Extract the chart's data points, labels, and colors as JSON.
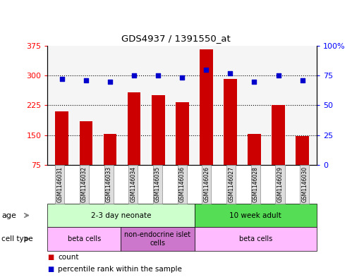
{
  "title": "GDS4937 / 1391550_at",
  "samples": [
    "GSM1146031",
    "GSM1146032",
    "GSM1146033",
    "GSM1146034",
    "GSM1146035",
    "GSM1146036",
    "GSM1146026",
    "GSM1146027",
    "GSM1146028",
    "GSM1146029",
    "GSM1146030"
  ],
  "counts": [
    210,
    185,
    153,
    258,
    250,
    232,
    365,
    292,
    152,
    225,
    148
  ],
  "percentiles": [
    72,
    71,
    70,
    75,
    75,
    73,
    80,
    77,
    70,
    75,
    71
  ],
  "ylim_left": [
    75,
    375
  ],
  "ylim_right": [
    0,
    100
  ],
  "yticks_left": [
    75,
    150,
    225,
    300,
    375
  ],
  "yticks_right": [
    0,
    25,
    50,
    75,
    100
  ],
  "ytick_right_labels": [
    "0",
    "25",
    "50",
    "75",
    "100%"
  ],
  "bar_color": "#CC0000",
  "scatter_color": "#0000CC",
  "bg_color": "#f5f5f5",
  "age_groups": [
    {
      "label": "2-3 day neonate",
      "start": 0,
      "end": 6,
      "color": "#ccffcc"
    },
    {
      "label": "10 week adult",
      "start": 6,
      "end": 11,
      "color": "#55dd55"
    }
  ],
  "cell_types": [
    {
      "label": "beta cells",
      "start": 0,
      "end": 3,
      "color": "#ffbbff"
    },
    {
      "label": "non-endocrine islet\ncells",
      "start": 3,
      "end": 6,
      "color": "#cc77cc"
    },
    {
      "label": "beta cells",
      "start": 6,
      "end": 11,
      "color": "#ffbbff"
    }
  ],
  "age_label": "age",
  "cell_type_label": "cell type",
  "legend_count_label": "count",
  "legend_percentile_label": "percentile rank within the sample"
}
